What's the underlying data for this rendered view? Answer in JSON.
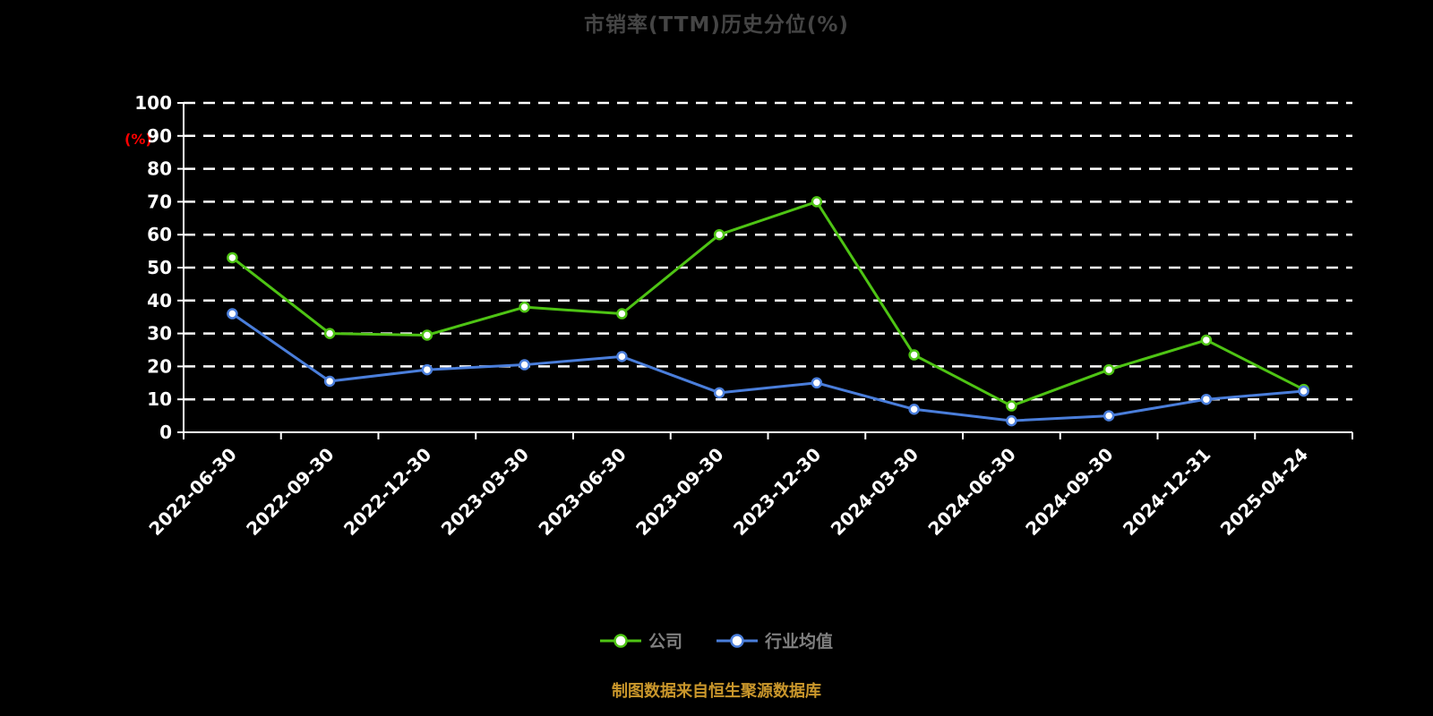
{
  "chart_data": {
    "type": "line",
    "title": "市销率(TTM)历史分位(%)",
    "ylabel": "(%)",
    "ylim": [
      0,
      100
    ],
    "ytick_interval": 10,
    "grid": true,
    "grid_style": "dashed",
    "legend_position": "bottom",
    "categories": [
      "2022-06-30",
      "2022-09-30",
      "2022-12-30",
      "2023-03-30",
      "2023-06-30",
      "2023-09-30",
      "2023-12-30",
      "2024-03-30",
      "2024-06-30",
      "2024-09-30",
      "2024-12-31",
      "2025-04-24"
    ],
    "series": [
      {
        "name": "公司",
        "color": "#4ec414",
        "values": [
          53,
          30,
          29.5,
          38,
          36,
          60,
          70,
          23.5,
          8,
          19,
          28,
          13
        ]
      },
      {
        "name": "行业均值",
        "color": "#4a7edb",
        "values": [
          36,
          15.5,
          19,
          20.5,
          23,
          12,
          15,
          7,
          3.5,
          5,
          10,
          12.5
        ]
      }
    ],
    "footer": "制图数据来自恒生聚源数据库",
    "colors": {
      "background": "#000000",
      "title": "#454545",
      "axis": "#ffffff",
      "tick_label": "#ffffff",
      "ylabel": "#ff0000",
      "legend_text": "#7f7f7f",
      "footer_text": "#c9962b",
      "marker_fill": "#ffffff"
    }
  }
}
